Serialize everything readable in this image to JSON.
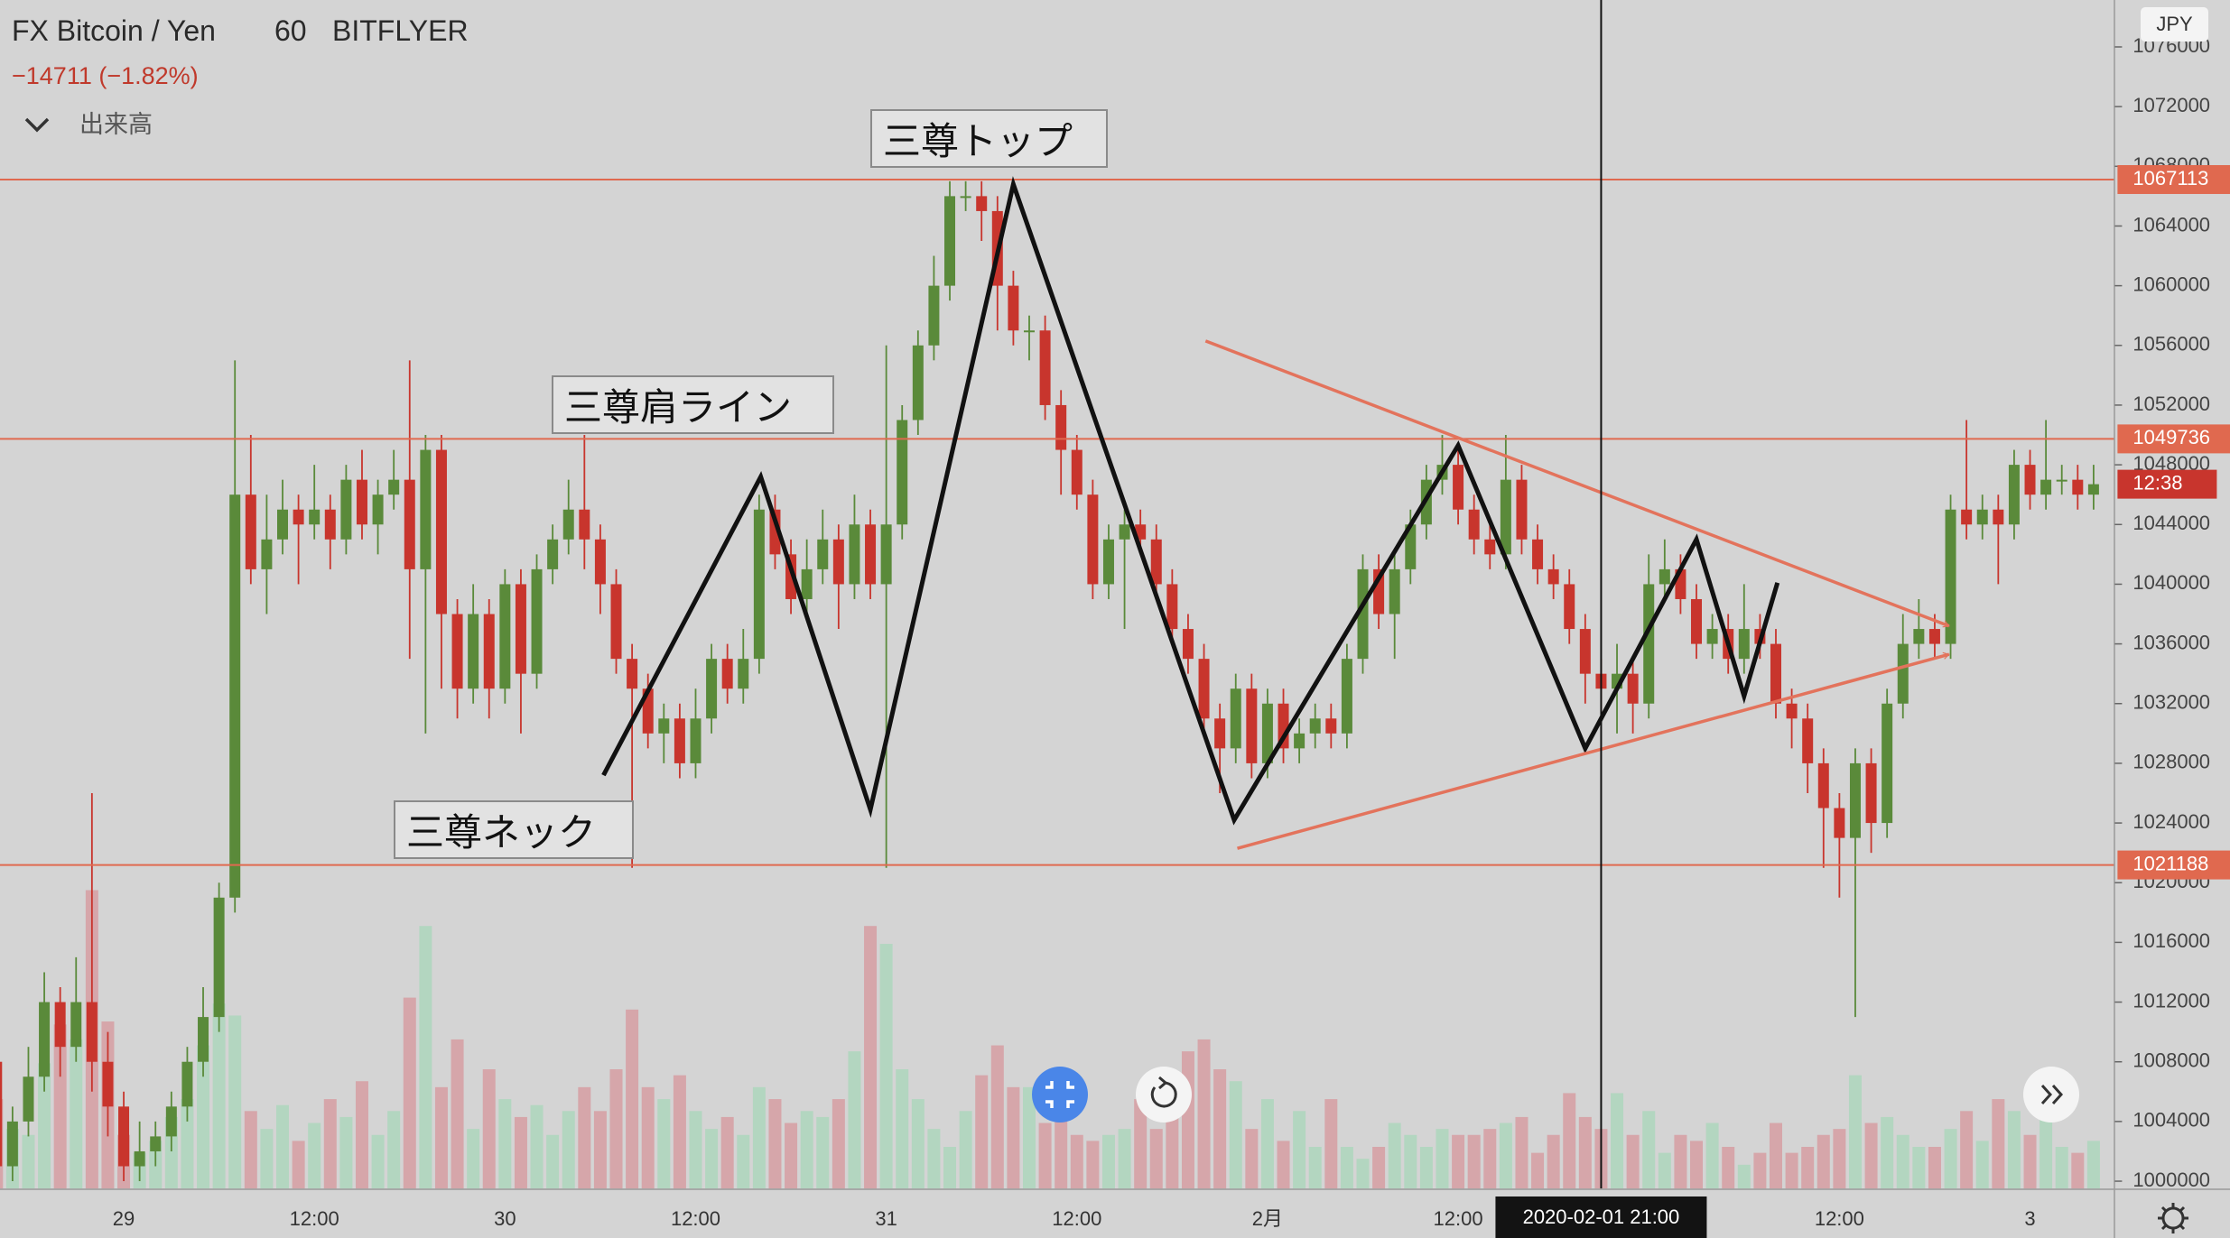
{
  "chart_data": {
    "type": "candlestick",
    "title": "FX Bitcoin / Yen",
    "interval": "60",
    "exchange": "BITFLYER",
    "change_label": "−14711 (−1.82%)",
    "indicator": "出来高",
    "currency": "JPY",
    "countdown": "12:38",
    "up_color": "#5a8a3a",
    "down_color": "#c8352d",
    "volume_up_color": "#b3d6c0",
    "volume_down_color": "#d6a6aa",
    "categories": [
      null,
      null,
      null,
      null,
      null,
      null,
      null,
      null,
      "29",
      null,
      null,
      null,
      null,
      null,
      null,
      null,
      null,
      null,
      null,
      null,
      "12:00",
      null,
      null,
      null,
      null,
      null,
      null,
      null,
      null,
      null,
      null,
      null,
      "30",
      null,
      null,
      null,
      null,
      null,
      null,
      null,
      null,
      null,
      null,
      null,
      "12:00",
      null,
      null,
      null,
      null,
      null,
      null,
      null,
      null,
      null,
      null,
      null,
      "31",
      null,
      null,
      null,
      null,
      null,
      null,
      null,
      null,
      null,
      null,
      null,
      "12:00",
      null,
      null,
      null,
      null,
      null,
      null,
      null,
      null,
      null,
      null,
      null,
      "2月",
      null,
      null,
      null,
      null,
      null,
      null,
      null,
      null,
      null,
      null,
      null,
      "12:00",
      null,
      null,
      null,
      null,
      null,
      null,
      null,
      null,
      null,
      null,
      null,
      null,
      null,
      null,
      null,
      null,
      null,
      null,
      null,
      null,
      null,
      null,
      null,
      "12:00",
      null,
      null,
      null,
      null,
      null,
      null,
      null,
      null,
      null,
      null,
      null,
      "3",
      null,
      null,
      null,
      null
    ],
    "open": [
      1008000,
      1001000,
      1004000,
      1007000,
      1012000,
      1009000,
      1012000,
      1008000,
      1005000,
      1001000,
      1002000,
      1003000,
      1005000,
      1008000,
      1011000,
      1019000,
      1046000,
      1041000,
      1043000,
      1045000,
      1044000,
      1045000,
      1043000,
      1047000,
      1044000,
      1046000,
      1047000,
      1041000,
      1049000,
      1038000,
      1033000,
      1038000,
      1033000,
      1040000,
      1034000,
      1041000,
      1043000,
      1045000,
      1043000,
      1040000,
      1035000,
      1033000,
      1030000,
      1031000,
      1028000,
      1031000,
      1035000,
      1033000,
      1035000,
      1045000,
      1042000,
      1039000,
      1041000,
      1043000,
      1040000,
      1044000,
      1040000,
      1044000,
      1051000,
      1056000,
      1060000,
      1066000,
      1066000,
      1065000,
      1060000,
      1057000,
      1057000,
      1052000,
      1049000,
      1046000,
      1040000,
      1043000,
      1044000,
      1043000,
      1040000,
      1037000,
      1035000,
      1031000,
      1029000,
      1033000,
      1028000,
      1032000,
      1029000,
      1030000,
      1031000,
      1030000,
      1035000,
      1041000,
      1038000,
      1041000,
      1044000,
      1047000,
      1048000,
      1045000,
      1043000,
      1042000,
      1047000,
      1043000,
      1041000,
      1040000,
      1037000,
      1034000,
      1033000,
      1034000,
      1032000,
      1040000,
      1041000,
      1039000,
      1036000,
      1037000,
      1035000,
      1037000,
      1036000,
      1032000,
      1031000,
      1028000,
      1025000,
      1023000,
      1028000,
      1024000,
      1032000,
      1036000,
      1037000,
      1036000,
      1045000,
      1044000,
      1045000,
      1044000,
      1048000,
      1046000,
      1047000,
      1047000,
      1046000
    ],
    "high": [
      1009000,
      1005000,
      1009000,
      1014000,
      1013000,
      1015000,
      1026000,
      1010000,
      1006000,
      1004000,
      1004000,
      1006000,
      1009000,
      1013000,
      1020000,
      1055000,
      1050000,
      1046000,
      1047000,
      1046000,
      1048000,
      1046000,
      1048000,
      1049000,
      1047000,
      1049000,
      1055000,
      1050000,
      1050000,
      1039000,
      1040000,
      1039000,
      1041000,
      1041000,
      1042000,
      1044000,
      1047000,
      1050000,
      1044000,
      1041000,
      1036000,
      1034000,
      1032000,
      1032000,
      1033000,
      1036000,
      1036000,
      1037000,
      1046000,
      1046000,
      1043000,
      1043000,
      1045000,
      1044000,
      1046000,
      1045000,
      1056000,
      1052000,
      1057000,
      1062000,
      1067000,
      1067000,
      1067000,
      1066000,
      1061000,
      1058000,
      1058000,
      1053000,
      1050000,
      1047000,
      1044000,
      1045000,
      1045000,
      1044000,
      1041000,
      1038000,
      1036000,
      1032000,
      1034000,
      1034000,
      1033000,
      1033000,
      1031000,
      1032000,
      1032000,
      1036000,
      1042000,
      1042000,
      1042000,
      1045000,
      1048000,
      1050000,
      1049000,
      1046000,
      1044000,
      1050000,
      1048000,
      1044000,
      1042000,
      1041000,
      1038000,
      1035000,
      1036000,
      1035000,
      1042000,
      1043000,
      1042000,
      1040000,
      1038000,
      1038000,
      1040000,
      1038000,
      1037000,
      1033000,
      1032000,
      1029000,
      1026000,
      1029000,
      1029000,
      1033000,
      1038000,
      1039000,
      1038000,
      1046000,
      1051000,
      1046000,
      1046000,
      1049000,
      1049000,
      1051000,
      1048000,
      1048000,
      1048000
    ],
    "low": [
      1000000,
      1000000,
      1003000,
      1006000,
      1007000,
      1008000,
      1006000,
      1003000,
      1000000,
      1000000,
      1001000,
      1002000,
      1004000,
      1007000,
      1010000,
      1018000,
      1040000,
      1038000,
      1042000,
      1040000,
      1043000,
      1041000,
      1042000,
      1043000,
      1042000,
      1045000,
      1035000,
      1030000,
      1033000,
      1031000,
      1032000,
      1031000,
      1032000,
      1030000,
      1033000,
      1040000,
      1042000,
      1041000,
      1038000,
      1034000,
      1021000,
      1029000,
      1028000,
      1027000,
      1027000,
      1030000,
      1032000,
      1032000,
      1034000,
      1041000,
      1038000,
      1038000,
      1040000,
      1037000,
      1039000,
      1039000,
      1021000,
      1043000,
      1050000,
      1055000,
      1059000,
      1065000,
      1063000,
      1057000,
      1056000,
      1055000,
      1051000,
      1046000,
      1045000,
      1039000,
      1039000,
      1037000,
      1042000,
      1039000,
      1036000,
      1034000,
      1030000,
      1026000,
      1028000,
      1027000,
      1027000,
      1028000,
      1028000,
      1029000,
      1029000,
      1029000,
      1034000,
      1037000,
      1035000,
      1040000,
      1043000,
      1046000,
      1044000,
      1042000,
      1041000,
      1041000,
      1042000,
      1040000,
      1039000,
      1036000,
      1032000,
      1031000,
      1030000,
      1030000,
      1031000,
      1039000,
      1038000,
      1035000,
      1035000,
      1034000,
      1034000,
      1035000,
      1031000,
      1029000,
      1026000,
      1021000,
      1019000,
      1011000,
      1022000,
      1023000,
      1031000,
      1035000,
      1035000,
      1035000,
      1043000,
      1043000,
      1040000,
      1043000,
      1045000,
      1045000,
      1046000,
      1045000,
      1045000
    ],
    "close": [
      1001000,
      1004000,
      1007000,
      1012000,
      1009000,
      1012000,
      1008000,
      1005000,
      1001000,
      1002000,
      1003000,
      1005000,
      1008000,
      1011000,
      1019000,
      1046000,
      1041000,
      1043000,
      1045000,
      1044000,
      1045000,
      1043000,
      1047000,
      1044000,
      1046000,
      1047000,
      1041000,
      1049000,
      1038000,
      1033000,
      1038000,
      1033000,
      1040000,
      1034000,
      1041000,
      1043000,
      1045000,
      1043000,
      1040000,
      1035000,
      1033000,
      1030000,
      1031000,
      1028000,
      1031000,
      1035000,
      1033000,
      1035000,
      1045000,
      1042000,
      1039000,
      1041000,
      1043000,
      1040000,
      1044000,
      1040000,
      1044000,
      1051000,
      1056000,
      1060000,
      1066000,
      1066000,
      1065000,
      1060000,
      1057000,
      1057000,
      1052000,
      1049000,
      1046000,
      1040000,
      1043000,
      1044000,
      1043000,
      1040000,
      1037000,
      1035000,
      1031000,
      1029000,
      1033000,
      1028000,
      1032000,
      1029000,
      1030000,
      1031000,
      1030000,
      1035000,
      1041000,
      1038000,
      1041000,
      1044000,
      1047000,
      1048000,
      1045000,
      1043000,
      1042000,
      1047000,
      1043000,
      1041000,
      1040000,
      1037000,
      1034000,
      1033000,
      1034000,
      1032000,
      1040000,
      1041000,
      1039000,
      1036000,
      1037000,
      1035000,
      1037000,
      1036000,
      1032000,
      1031000,
      1028000,
      1025000,
      1023000,
      1028000,
      1024000,
      1032000,
      1036000,
      1037000,
      1036000,
      1045000,
      1044000,
      1045000,
      1044000,
      1048000,
      1046000,
      1047000,
      1047000,
      1046000,
      1046700
    ],
    "volume": [
      30,
      20,
      18,
      42,
      55,
      50,
      100,
      56,
      18,
      12,
      16,
      24,
      30,
      48,
      62,
      58,
      26,
      20,
      28,
      16,
      22,
      30,
      24,
      36,
      18,
      26,
      64,
      88,
      34,
      50,
      20,
      40,
      30,
      24,
      28,
      18,
      26,
      34,
      26,
      40,
      60,
      34,
      30,
      38,
      26,
      20,
      24,
      18,
      34,
      30,
      22,
      26,
      24,
      30,
      46,
      88,
      82,
      40,
      30,
      20,
      14,
      26,
      38,
      48,
      34,
      34,
      22,
      24,
      18,
      16,
      18,
      20,
      30,
      20,
      36,
      46,
      50,
      40,
      36,
      20,
      30,
      16,
      26,
      14,
      30,
      14,
      10,
      14,
      22,
      18,
      14,
      20,
      18,
      18,
      20,
      22,
      24,
      12,
      18,
      32,
      24,
      20,
      32,
      18,
      26,
      12,
      18,
      16,
      22,
      14,
      8,
      12,
      22,
      12,
      14,
      18,
      20,
      38,
      22,
      24,
      18,
      14,
      14,
      20,
      26,
      16,
      30,
      26,
      18,
      40,
      14,
      12,
      16
    ],
    "ylim": [
      999500,
      1079000
    ],
    "yticks": [
      1000000,
      1004000,
      1008000,
      1012000,
      1016000,
      1020000,
      1024000,
      1028000,
      1032000,
      1036000,
      1040000,
      1044000,
      1048000,
      1052000,
      1056000,
      1060000,
      1064000,
      1068000,
      1072000,
      1076000
    ],
    "grid": false,
    "hline_color": "#e0694f",
    "hlines": [
      1067113,
      1049736,
      1021188
    ],
    "zigzag": {
      "color": "#111111",
      "x": [
        38.2,
        48.1,
        55,
        64,
        77.9,
        92,
        100,
        107,
        110,
        112.1
      ],
      "y": [
        1027200,
        1047200,
        1024900,
        1066800,
        1024200,
        1049300,
        1029000,
        1043000,
        1032500,
        1040100
      ]
    },
    "trend_color": "#e3735c",
    "trend_lines": [
      {
        "x": [
          76.1,
          122.9
        ],
        "y": [
          1056300,
          1037200
        ]
      },
      {
        "x": [
          78.1,
          122.9
        ],
        "y": [
          1022300,
          1035300
        ]
      }
    ],
    "crosshair": {
      "x": 101,
      "label": "2020-02-01 21:00"
    },
    "annotations": [
      "三尊トップ",
      "三尊肩ライン",
      "三尊ネック"
    ]
  }
}
